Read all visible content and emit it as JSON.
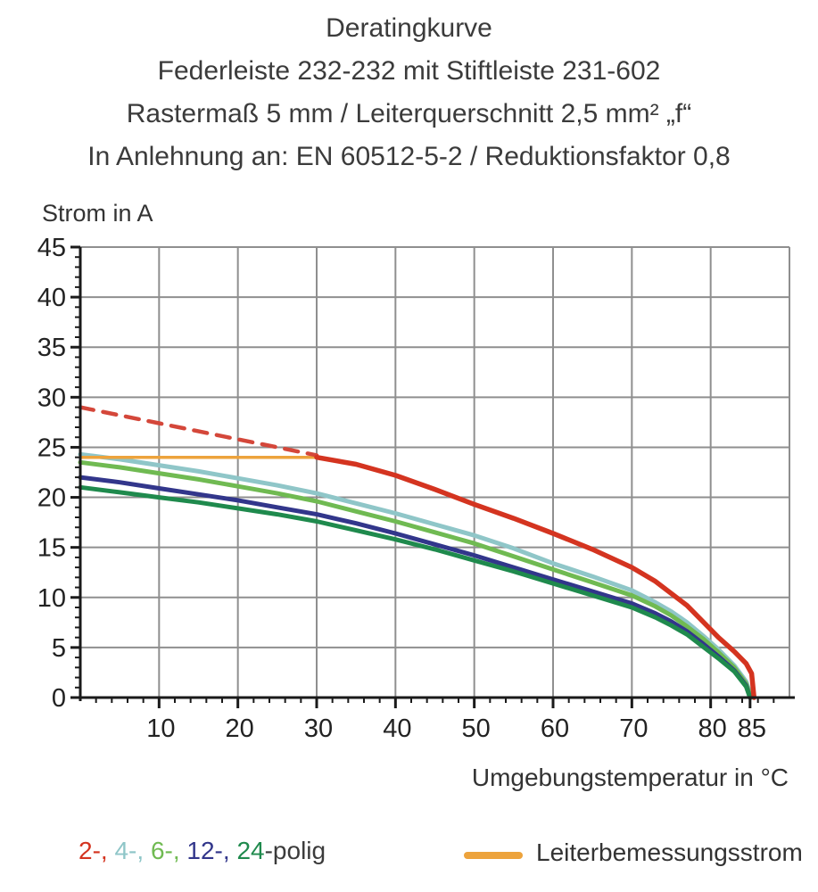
{
  "title": {
    "lines": [
      "Deratingkurve",
      "Federleiste 232-232 mit Stiftleiste 231-602",
      "Rastermaß 5 mm / Leiterquerschnitt 2,5 mm² „f“",
      "In Anlehnung an: EN 60512-5-2 / Reduktionsfaktor 0,8"
    ]
  },
  "axes": {
    "y_label": "Strom in A",
    "x_label": "Umgebungstemperatur in °C"
  },
  "colors": {
    "red": "#d43420",
    "orange": "#eda33c",
    "cyan": "#8fc6c8",
    "light_green": "#70ba52",
    "navy": "#32368b",
    "dark_green": "#1f8a4d",
    "grid": "#8f8f8f",
    "axis": "#1a1a1a",
    "text": "#333333"
  },
  "legend": {
    "poles": [
      {
        "label": "2-, ",
        "color": "#d43420"
      },
      {
        "label": "4-, ",
        "color": "#8fc6c8"
      },
      {
        "label": "6-, ",
        "color": "#70ba52"
      },
      {
        "label": "12-, ",
        "color": "#32368b"
      },
      {
        "label": "24",
        "color": "#1f8a4d"
      }
    ],
    "poles_suffix": "-polig",
    "rated_current": {
      "label": "Leiterbemessungsstrom",
      "color": "#eda33c"
    }
  },
  "chart_data": {
    "type": "line",
    "title": "Deratingkurve",
    "xlabel": "Umgebungstemperatur in °C",
    "ylabel": "Strom in A",
    "xlim": [
      0,
      90
    ],
    "ylim": [
      0,
      45
    ],
    "x_major_ticks": [
      10,
      20,
      30,
      40,
      50,
      60,
      70,
      80,
      85
    ],
    "x_minor_step": 2,
    "y_major_ticks": [
      0,
      5,
      10,
      15,
      20,
      25,
      30,
      35,
      40,
      45
    ],
    "y_minor_step": 1,
    "grid": true,
    "legend_position": "bottom",
    "series": [
      {
        "name": "4-polig",
        "color": "#8fc6c8",
        "width": 5,
        "dash": null,
        "points": [
          [
            0,
            24.3
          ],
          [
            5,
            23.8
          ],
          [
            10,
            23.2
          ],
          [
            15,
            22.6
          ],
          [
            20,
            21.9
          ],
          [
            25,
            21.2
          ],
          [
            30,
            20.4
          ],
          [
            35,
            19.4
          ],
          [
            40,
            18.4
          ],
          [
            45,
            17.3
          ],
          [
            50,
            16.2
          ],
          [
            55,
            14.9
          ],
          [
            60,
            13.4
          ],
          [
            65,
            12.1
          ],
          [
            70,
            10.7
          ],
          [
            73,
            9.5
          ],
          [
            75,
            8.6
          ],
          [
            77,
            7.5
          ],
          [
            79,
            6.2
          ],
          [
            81,
            4.8
          ],
          [
            83,
            3.2
          ],
          [
            84.5,
            1.6
          ],
          [
            85.2,
            0
          ]
        ]
      },
      {
        "name": "6-polig",
        "color": "#70ba52",
        "width": 5,
        "dash": null,
        "points": [
          [
            0,
            23.5
          ],
          [
            5,
            23.0
          ],
          [
            10,
            22.4
          ],
          [
            15,
            21.8
          ],
          [
            20,
            21.1
          ],
          [
            25,
            20.4
          ],
          [
            30,
            19.6
          ],
          [
            35,
            18.6
          ],
          [
            40,
            17.6
          ],
          [
            45,
            16.5
          ],
          [
            50,
            15.4
          ],
          [
            55,
            14.1
          ],
          [
            60,
            12.8
          ],
          [
            65,
            11.5
          ],
          [
            70,
            10.2
          ],
          [
            73,
            9.1
          ],
          [
            75,
            8.2
          ],
          [
            77,
            7.1
          ],
          [
            79,
            5.9
          ],
          [
            81,
            4.5
          ],
          [
            83,
            3.0
          ],
          [
            84.5,
            1.4
          ],
          [
            85.1,
            0
          ]
        ]
      },
      {
        "name": "12-polig",
        "color": "#32368b",
        "width": 5,
        "dash": null,
        "points": [
          [
            0,
            22.0
          ],
          [
            5,
            21.5
          ],
          [
            10,
            20.9
          ],
          [
            15,
            20.3
          ],
          [
            20,
            19.7
          ],
          [
            25,
            19.0
          ],
          [
            30,
            18.3
          ],
          [
            35,
            17.4
          ],
          [
            40,
            16.4
          ],
          [
            45,
            15.3
          ],
          [
            50,
            14.2
          ],
          [
            55,
            13.0
          ],
          [
            60,
            11.8
          ],
          [
            65,
            10.6
          ],
          [
            70,
            9.4
          ],
          [
            73,
            8.4
          ],
          [
            75,
            7.6
          ],
          [
            77,
            6.6
          ],
          [
            79,
            5.4
          ],
          [
            81,
            4.1
          ],
          [
            83,
            2.7
          ],
          [
            84.5,
            1.2
          ],
          [
            85,
            0
          ]
        ]
      },
      {
        "name": "24-polig",
        "color": "#1f8a4d",
        "width": 5,
        "dash": null,
        "points": [
          [
            0,
            21.0
          ],
          [
            5,
            20.5
          ],
          [
            10,
            20.0
          ],
          [
            15,
            19.5
          ],
          [
            20,
            18.9
          ],
          [
            25,
            18.3
          ],
          [
            30,
            17.6
          ],
          [
            35,
            16.7
          ],
          [
            40,
            15.8
          ],
          [
            45,
            14.8
          ],
          [
            50,
            13.7
          ],
          [
            55,
            12.6
          ],
          [
            60,
            11.4
          ],
          [
            65,
            10.2
          ],
          [
            70,
            9.0
          ],
          [
            73,
            8.0
          ],
          [
            75,
            7.2
          ],
          [
            77,
            6.3
          ],
          [
            79,
            5.1
          ],
          [
            81,
            3.9
          ],
          [
            83,
            2.6
          ],
          [
            84.5,
            1.1
          ],
          [
            85,
            0
          ]
        ]
      },
      {
        "name": "Leiterbemessungsstrom",
        "color": "#eda33c",
        "width": 3.5,
        "dash": null,
        "points": [
          [
            0,
            24
          ],
          [
            30,
            24
          ]
        ]
      },
      {
        "name": "2-polig (gestrichelt)",
        "color": "#d4473a",
        "width": 4.5,
        "dash": "15 11",
        "points": [
          [
            0,
            29
          ],
          [
            10,
            27.4
          ],
          [
            20,
            25.8
          ],
          [
            30,
            24.2
          ]
        ]
      },
      {
        "name": "2-polig",
        "color": "#d43420",
        "width": 5.5,
        "dash": null,
        "points": [
          [
            30,
            24
          ],
          [
            35,
            23.3
          ],
          [
            40,
            22.2
          ],
          [
            45,
            20.8
          ],
          [
            50,
            19.3
          ],
          [
            55,
            17.9
          ],
          [
            60,
            16.4
          ],
          [
            65,
            14.8
          ],
          [
            70,
            13.0
          ],
          [
            73,
            11.6
          ],
          [
            75,
            10.4
          ],
          [
            77,
            9.2
          ],
          [
            79,
            7.6
          ],
          [
            81,
            6.0
          ],
          [
            83,
            4.6
          ],
          [
            84.5,
            3.4
          ],
          [
            85.2,
            2.4
          ],
          [
            85.5,
            0
          ]
        ]
      }
    ]
  }
}
